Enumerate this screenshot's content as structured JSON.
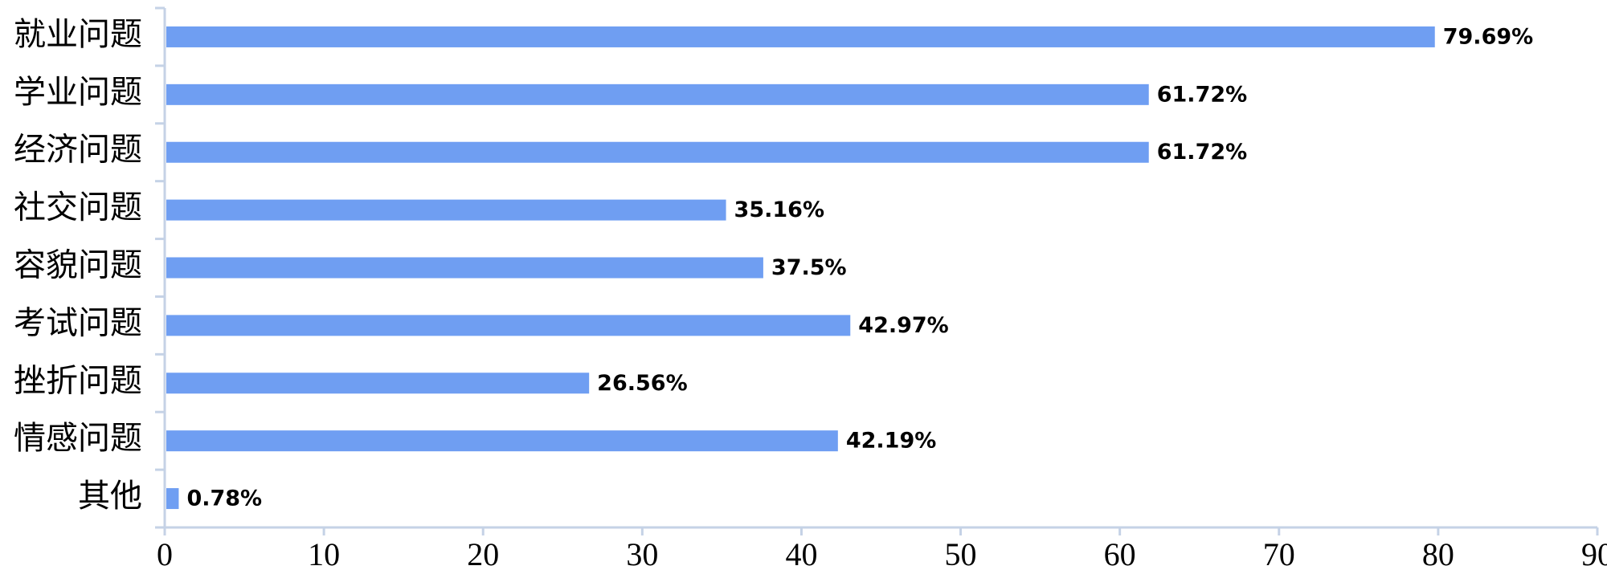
{
  "chart_data": {
    "type": "hbar",
    "categories": [
      "就业问题",
      "学业问题",
      "经济问题",
      "社交问题",
      "容貌问题",
      "考试问题",
      "挫折问题",
      "情感问题",
      "其他"
    ],
    "values": [
      79.69,
      61.72,
      61.72,
      35.16,
      37.5,
      42.97,
      26.56,
      42.19,
      0.78
    ],
    "value_labels": [
      "79.69%",
      "61.72%",
      "61.72%",
      "35.16%",
      "37.5%",
      "42.97%",
      "26.56%",
      "42.19%",
      "0.78%"
    ],
    "color": "#6f9ef2",
    "xlim": [
      0,
      90
    ],
    "xticks": [
      0,
      10,
      20,
      30,
      40,
      50,
      60,
      70,
      80,
      90
    ]
  }
}
